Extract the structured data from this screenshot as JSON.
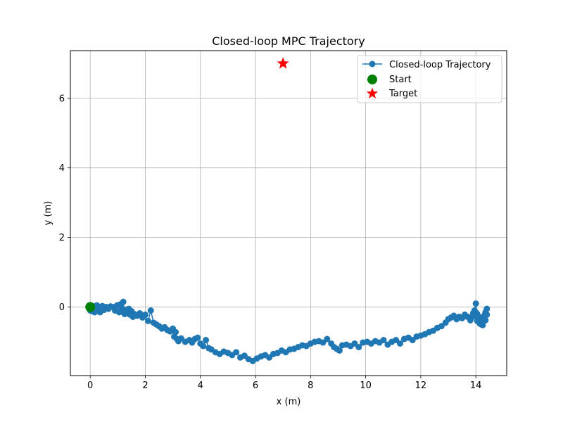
{
  "chart_data": {
    "type": "line",
    "title": "Closed-loop MPC Trajectory",
    "xlabel": "x (m)",
    "ylabel": "y (m)",
    "xlim": [
      -0.72,
      15.12
    ],
    "ylim": [
      -1.97,
      7.37
    ],
    "xticks": [
      0,
      2,
      4,
      6,
      8,
      10,
      12,
      14
    ],
    "yticks": [
      0,
      2,
      4,
      6
    ],
    "grid": true,
    "legend_position": "top-right",
    "colors": {
      "trajectory": "#1f77b4",
      "start": "#008000",
      "target": "#ff0000"
    },
    "series": [
      {
        "name": "Closed-loop Trajectory",
        "marker": "circle",
        "x": [
          0.0,
          0.04,
          0.08,
          0.12,
          0.16,
          0.2,
          0.24,
          0.28,
          0.32,
          0.36,
          0.4,
          0.44,
          0.5,
          0.58,
          0.66,
          0.74,
          0.82,
          0.9,
          0.98,
          1.05,
          1.1,
          1.15,
          1.2,
          1.25,
          1.3,
          1.35,
          1.4,
          1.45,
          1.5,
          1.55,
          1.6,
          1.7,
          1.8,
          1.9,
          2.0,
          2.1,
          2.2,
          2.3,
          2.4,
          2.5,
          2.6,
          2.7,
          2.8,
          2.9,
          3.0,
          3.05,
          3.1,
          3.15,
          3.2,
          3.3,
          3.45,
          3.6,
          3.7,
          3.8,
          3.9,
          4.0,
          4.1,
          4.2,
          4.3,
          4.4,
          4.55,
          4.7,
          4.85,
          5.0,
          5.15,
          5.3,
          5.45,
          5.6,
          5.75,
          5.9,
          6.05,
          6.2,
          6.35,
          6.5,
          6.65,
          6.8,
          6.95,
          7.1,
          7.25,
          7.4,
          7.55,
          7.7,
          7.85,
          8.0,
          8.15,
          8.3,
          8.45,
          8.6,
          8.75,
          8.85,
          8.95,
          9.05,
          9.15,
          9.3,
          9.45,
          9.6,
          9.75,
          9.9,
          10.05,
          10.2,
          10.35,
          10.5,
          10.65,
          10.8,
          10.95,
          11.1,
          11.25,
          11.4,
          11.55,
          11.7,
          11.85,
          12.0,
          12.15,
          12.3,
          12.45,
          12.6,
          12.75,
          12.9,
          13.0,
          13.1,
          13.2,
          13.3,
          13.4,
          13.5,
          13.6,
          13.7,
          13.8,
          13.85,
          13.9,
          13.95,
          14.0,
          14.05,
          14.1,
          14.15,
          14.2,
          14.25,
          14.3,
          14.35,
          14.4,
          14.35,
          14.3,
          14.2,
          14.1,
          14.0,
          13.95,
          14.05,
          14.15,
          14.25,
          14.35,
          14.4
        ],
        "y": [
          -0.1,
          -0.05,
          -0.12,
          0.02,
          -0.15,
          -0.05,
          0.05,
          -0.1,
          0.0,
          -0.15,
          -0.05,
          0.03,
          -0.08,
          0.0,
          -0.05,
          0.02,
          0.0,
          -0.1,
          0.05,
          -0.15,
          0.08,
          -0.05,
          0.15,
          -0.2,
          -0.08,
          -0.18,
          -0.05,
          -0.22,
          -0.12,
          -0.28,
          -0.2,
          -0.25,
          -0.18,
          -0.3,
          -0.22,
          -0.4,
          -0.1,
          -0.45,
          -0.5,
          -0.55,
          -0.62,
          -0.58,
          -0.66,
          -0.7,
          -0.62,
          -0.85,
          -0.72,
          -0.92,
          -0.98,
          -0.9,
          -1.0,
          -0.95,
          -1.02,
          -0.92,
          -0.88,
          -1.05,
          -1.12,
          -0.95,
          -1.18,
          -1.22,
          -1.3,
          -1.35,
          -1.28,
          -1.32,
          -1.38,
          -1.3,
          -1.45,
          -1.4,
          -1.5,
          -1.55,
          -1.48,
          -1.42,
          -1.38,
          -1.45,
          -1.35,
          -1.32,
          -1.25,
          -1.3,
          -1.22,
          -1.2,
          -1.15,
          -1.1,
          -1.12,
          -1.05,
          -1.0,
          -0.98,
          -1.02,
          -0.92,
          -1.05,
          -1.15,
          -1.2,
          -1.25,
          -1.1,
          -1.08,
          -1.12,
          -1.05,
          -1.15,
          -1.02,
          -1.0,
          -1.05,
          -0.98,
          -1.02,
          -0.95,
          -1.08,
          -1.0,
          -0.95,
          -1.05,
          -0.92,
          -0.88,
          -0.95,
          -0.85,
          -0.82,
          -0.78,
          -0.72,
          -0.68,
          -0.6,
          -0.55,
          -0.45,
          -0.35,
          -0.3,
          -0.25,
          -0.35,
          -0.28,
          -0.32,
          -0.22,
          -0.28,
          -0.38,
          -0.3,
          -0.18,
          -0.1,
          0.1,
          -0.2,
          -0.35,
          -0.45,
          -0.5,
          -0.42,
          -0.3,
          -0.2,
          -0.05,
          -0.15,
          -0.25,
          -0.35,
          -0.28,
          -0.15,
          -0.25,
          -0.4,
          -0.48,
          -0.52,
          -0.38,
          -0.22
        ]
      },
      {
        "name": "Start",
        "marker": "big-circle",
        "x": [
          0.0
        ],
        "y": [
          0.0
        ]
      },
      {
        "name": "Target",
        "marker": "star",
        "x": [
          7.0
        ],
        "y": [
          7.0
        ]
      }
    ]
  }
}
